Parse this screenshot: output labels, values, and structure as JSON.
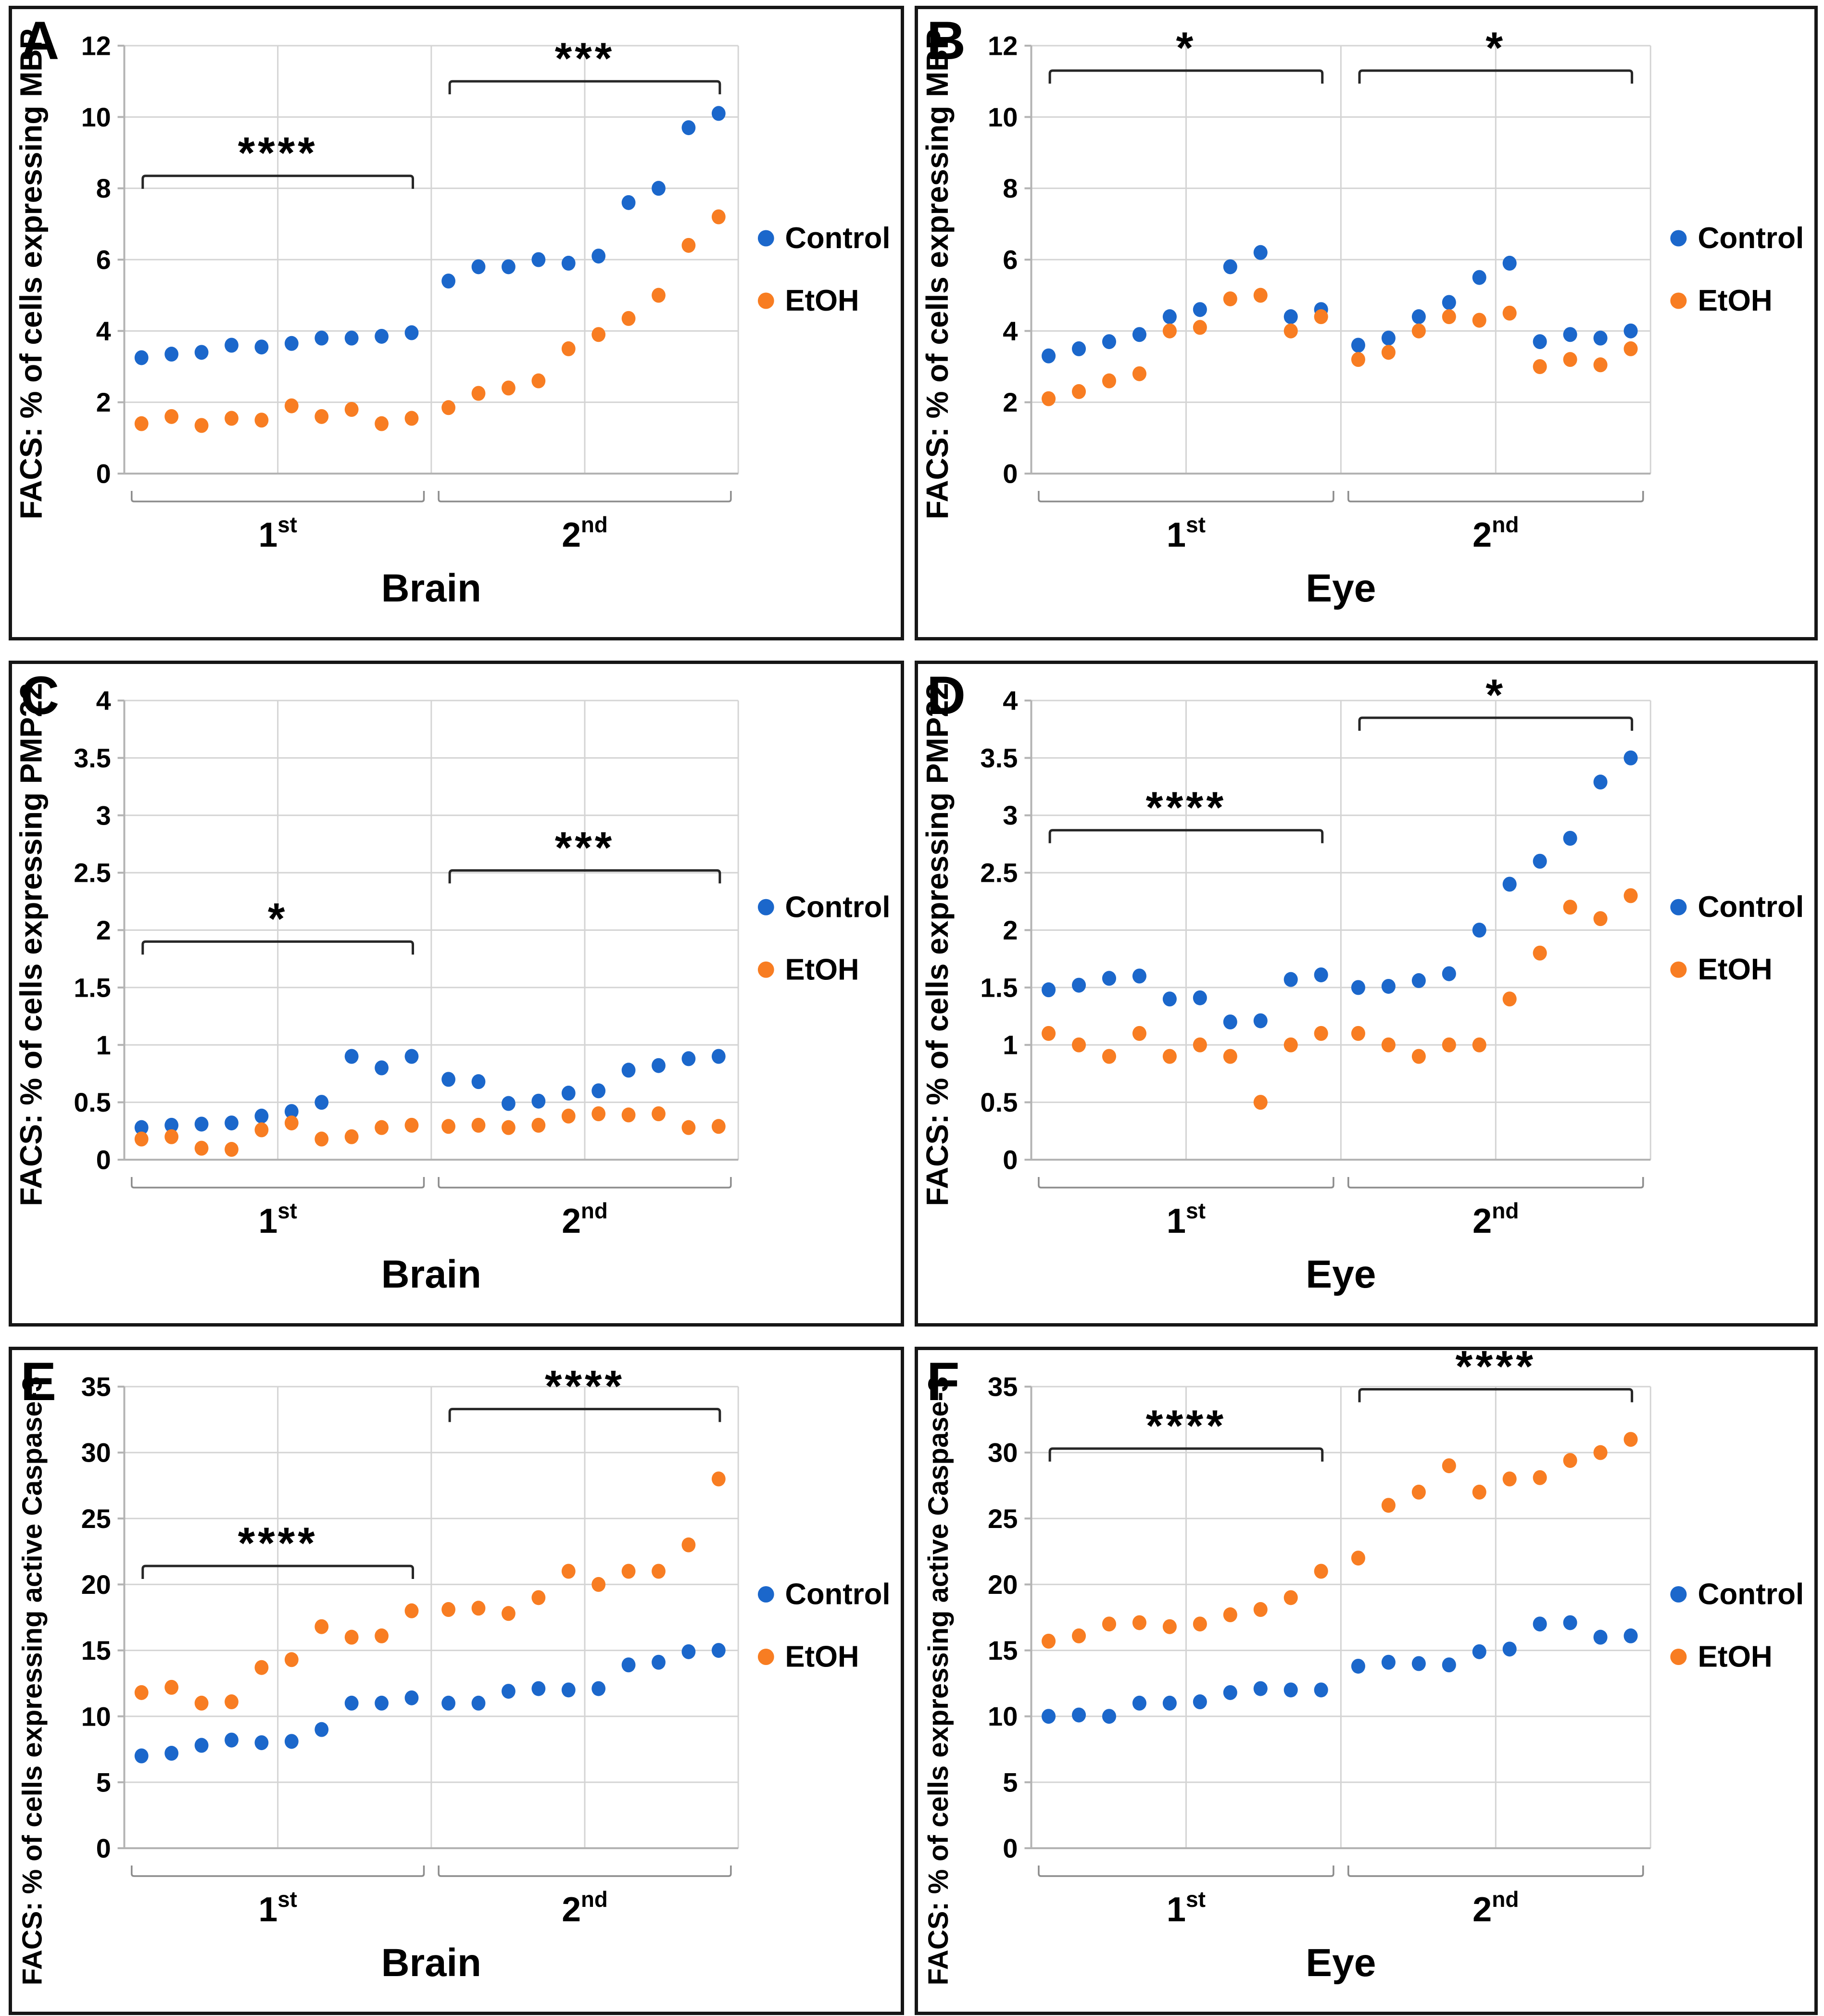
{
  "colors": {
    "control": "#1b67cb",
    "etoh": "#f87d22",
    "grid": "#d4d4d4",
    "axis": "#b3b3b3",
    "bracket": "#262626",
    "group_brace": "#8c8c8c",
    "text": "#000000",
    "panel_border": "#161616"
  },
  "legend": {
    "entries": [
      {
        "label": "Control",
        "color_key": "control"
      },
      {
        "label": "EtOH",
        "color_key": "etoh"
      }
    ]
  },
  "chart_data": [
    {
      "type": "scatter",
      "letter": "A",
      "ylabel": "FACS: % of cells expressing MBP",
      "xlabel": "Brain",
      "group_labels": [
        {
          "base": "1",
          "sup": "st"
        },
        {
          "base": "2",
          "sup": "nd"
        }
      ],
      "ylim": [
        0,
        12
      ],
      "yticks": [
        0,
        2,
        4,
        6,
        8,
        10,
        12
      ],
      "ytick_labels": [
        "0",
        "2",
        "4",
        "6",
        "8",
        "10",
        "12"
      ],
      "series": [
        {
          "name": "Control",
          "color_key": "control",
          "groups": [
            [
              3.25,
              3.35,
              3.4,
              3.6,
              3.55,
              3.65,
              3.8,
              3.8,
              3.85,
              3.95
            ],
            [
              5.4,
              5.8,
              5.8,
              6.0,
              5.9,
              6.1,
              7.6,
              8.0,
              9.7,
              10.1
            ]
          ]
        },
        {
          "name": "EtOH",
          "color_key": "etoh",
          "groups": [
            [
              1.4,
              1.6,
              1.35,
              1.55,
              1.5,
              1.9,
              1.6,
              1.8,
              1.4,
              1.55
            ],
            [
              1.85,
              2.25,
              2.4,
              2.6,
              3.5,
              3.9,
              4.35,
              5.0,
              6.4,
              7.2
            ]
          ]
        }
      ],
      "significance": [
        {
          "group": 0,
          "label": "****",
          "y": 8.35
        },
        {
          "group": 1,
          "label": "***",
          "y": 11.0
        }
      ]
    },
    {
      "type": "scatter",
      "letter": "B",
      "ylabel": "FACS: % of cells expressing MBP",
      "xlabel": "Eye",
      "group_labels": [
        {
          "base": "1",
          "sup": "st"
        },
        {
          "base": "2",
          "sup": "nd"
        }
      ],
      "ylim": [
        0,
        12
      ],
      "yticks": [
        0,
        2,
        4,
        6,
        8,
        10,
        12
      ],
      "ytick_labels": [
        "0",
        "2",
        "4",
        "6",
        "8",
        "10",
        "12"
      ],
      "series": [
        {
          "name": "Control",
          "color_key": "control",
          "groups": [
            [
              3.3,
              3.5,
              3.7,
              3.9,
              4.4,
              4.6,
              5.8,
              6.2,
              4.4,
              4.6
            ],
            [
              3.6,
              3.8,
              4.4,
              4.8,
              5.5,
              5.9,
              3.7,
              3.9,
              3.8,
              4.0
            ]
          ]
        },
        {
          "name": "EtOH",
          "color_key": "etoh",
          "groups": [
            [
              2.1,
              2.3,
              2.6,
              2.8,
              4.0,
              4.1,
              4.9,
              5.0,
              4.0,
              4.4
            ],
            [
              3.2,
              3.4,
              4.0,
              4.4,
              4.3,
              4.5,
              3.0,
              3.2,
              3.05,
              3.5
            ]
          ]
        }
      ],
      "significance": [
        {
          "group": 0,
          "label": "*",
          "y": 11.3
        },
        {
          "group": 1,
          "label": "*",
          "y": 11.3
        }
      ]
    },
    {
      "type": "scatter",
      "letter": "C",
      "ylabel": "FACS: % of cells expressing PMP22",
      "xlabel": "Brain",
      "group_labels": [
        {
          "base": "1",
          "sup": "st"
        },
        {
          "base": "2",
          "sup": "nd"
        }
      ],
      "ylim": [
        0,
        4
      ],
      "yticks": [
        0,
        0.5,
        1,
        1.5,
        2,
        2.5,
        3,
        3.5,
        4
      ],
      "ytick_labels": [
        "0",
        "0.5",
        "1",
        "1.5",
        "2",
        "2.5",
        "3",
        "3.5",
        "4"
      ],
      "series": [
        {
          "name": "Control",
          "color_key": "control",
          "groups": [
            [
              0.28,
              0.3,
              0.31,
              0.32,
              0.38,
              0.42,
              0.5,
              0.9,
              0.8,
              0.9
            ],
            [
              0.7,
              0.68,
              0.49,
              0.51,
              0.58,
              0.6,
              0.78,
              0.82,
              0.88,
              0.9
            ]
          ]
        },
        {
          "name": "EtOH",
          "color_key": "etoh",
          "groups": [
            [
              0.18,
              0.2,
              0.1,
              0.09,
              0.26,
              0.32,
              0.18,
              0.2,
              0.28,
              0.3
            ],
            [
              0.29,
              0.3,
              0.28,
              0.3,
              0.38,
              0.4,
              0.39,
              0.4,
              0.28,
              0.29
            ]
          ]
        }
      ],
      "significance": [
        {
          "group": 0,
          "label": "*",
          "y": 1.9
        },
        {
          "group": 1,
          "label": "***",
          "y": 2.52
        }
      ]
    },
    {
      "type": "scatter",
      "letter": "D",
      "ylabel": "FACS: % of cells expressing PMP22",
      "xlabel": "Eye",
      "group_labels": [
        {
          "base": "1",
          "sup": "st"
        },
        {
          "base": "2",
          "sup": "nd"
        }
      ],
      "ylim": [
        0,
        4
      ],
      "yticks": [
        0,
        0.5,
        1,
        1.5,
        2,
        2.5,
        3,
        3.5,
        4
      ],
      "ytick_labels": [
        "0",
        "0.5",
        "1",
        "1.5",
        "2",
        "2.5",
        "3",
        "3.5",
        "4"
      ],
      "series": [
        {
          "name": "Control",
          "color_key": "control",
          "groups": [
            [
              1.48,
              1.52,
              1.58,
              1.6,
              1.4,
              1.41,
              1.2,
              1.21,
              1.57,
              1.61
            ],
            [
              1.5,
              1.51,
              1.56,
              1.62,
              2.0,
              2.4,
              2.6,
              2.8,
              3.29,
              3.5
            ]
          ]
        },
        {
          "name": "EtOH",
          "color_key": "etoh",
          "groups": [
            [
              1.1,
              1.0,
              0.9,
              1.1,
              0.9,
              1.0,
              0.9,
              0.5,
              1.0,
              1.1
            ],
            [
              1.1,
              1.0,
              0.9,
              1.0,
              1.0,
              1.4,
              1.8,
              2.2,
              2.1,
              2.3
            ]
          ]
        }
      ],
      "significance": [
        {
          "group": 0,
          "label": "****",
          "y": 2.87
        },
        {
          "group": 1,
          "label": "*",
          "y": 3.85
        }
      ]
    },
    {
      "type": "scatter",
      "letter": "E",
      "ylabel": "FACS: % of cells expressing active Caspase-3",
      "xlabel": "Brain",
      "group_labels": [
        {
          "base": "1",
          "sup": "st"
        },
        {
          "base": "2",
          "sup": "nd"
        }
      ],
      "ylim": [
        0,
        35
      ],
      "yticks": [
        0,
        5,
        10,
        15,
        20,
        25,
        30,
        35
      ],
      "ytick_labels": [
        "0",
        "5",
        "10",
        "15",
        "20",
        "25",
        "30",
        "35"
      ],
      "series": [
        {
          "name": "Control",
          "color_key": "control",
          "groups": [
            [
              7.0,
              7.2,
              7.8,
              8.2,
              8.0,
              8.1,
              9.0,
              11.0,
              11.0,
              11.4
            ],
            [
              11.0,
              11.0,
              11.9,
              12.1,
              12.0,
              12.1,
              13.9,
              14.1,
              14.9,
              15.0
            ]
          ]
        },
        {
          "name": "EtOH",
          "color_key": "etoh",
          "groups": [
            [
              11.8,
              12.2,
              11.0,
              11.1,
              13.7,
              14.3,
              16.8,
              16.0,
              16.1,
              18.0
            ],
            [
              18.1,
              18.2,
              17.8,
              19.0,
              21.0,
              20.0,
              21.0,
              21.0,
              23.0,
              28.0
            ]
          ]
        }
      ],
      "significance": [
        {
          "group": 0,
          "label": "****",
          "y": 21.4
        },
        {
          "group": 1,
          "label": "****",
          "y": 33.3
        }
      ]
    },
    {
      "type": "scatter",
      "letter": "F",
      "ylabel": "FACS: % of cells expressing active Caspase-3",
      "xlabel": "Eye",
      "group_labels": [
        {
          "base": "1",
          "sup": "st"
        },
        {
          "base": "2",
          "sup": "nd"
        }
      ],
      "ylim": [
        0,
        35
      ],
      "yticks": [
        0,
        5,
        10,
        15,
        20,
        25,
        30,
        35
      ],
      "ytick_labels": [
        "0",
        "5",
        "10",
        "15",
        "20",
        "25",
        "30",
        "35"
      ],
      "series": [
        {
          "name": "Control",
          "color_key": "control",
          "groups": [
            [
              10.0,
              10.1,
              10.0,
              11.0,
              11.0,
              11.1,
              11.8,
              12.1,
              12.0,
              12.0
            ],
            [
              13.8,
              14.1,
              14.0,
              13.9,
              14.9,
              15.1,
              17.0,
              17.1,
              16.0,
              16.1
            ]
          ]
        },
        {
          "name": "EtOH",
          "color_key": "etoh",
          "groups": [
            [
              15.7,
              16.1,
              17.0,
              17.1,
              16.8,
              17.0,
              17.7,
              18.1,
              19.0,
              21.0
            ],
            [
              22.0,
              26.0,
              27.0,
              29.0,
              27.0,
              28.0,
              28.1,
              29.4,
              30.0,
              31.0
            ]
          ]
        }
      ],
      "significance": [
        {
          "group": 0,
          "label": "****",
          "y": 30.3
        },
        {
          "group": 1,
          "label": "****",
          "y": 34.8
        }
      ]
    }
  ]
}
